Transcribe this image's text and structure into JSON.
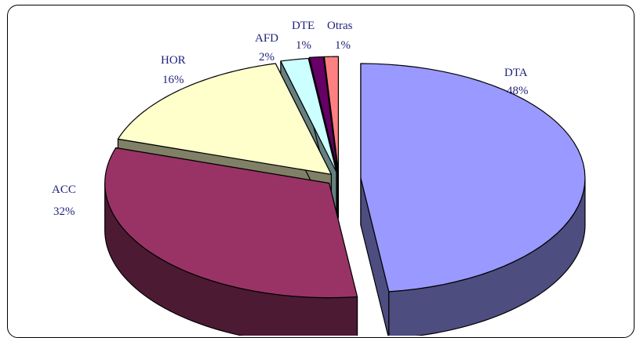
{
  "chart_data": {
    "type": "pie",
    "style": "3d-exploded",
    "title": "",
    "categories": [
      "DTA",
      "ACC",
      "HOR",
      "AFD",
      "DTE",
      "Otras"
    ],
    "values": [
      48,
      32,
      16,
      2,
      1,
      1
    ],
    "labels": [
      "48%",
      "32%",
      "16%",
      "2%",
      "1%",
      "1%"
    ],
    "colors": [
      "#9999ff",
      "#993366",
      "#ffffcc",
      "#ccffff",
      "#660066",
      "#ff8080"
    ],
    "side_colors": [
      "#4d4d80",
      "#4d1a33",
      "#808066",
      "#668080",
      "#330033",
      "#804040"
    ],
    "legend": "none (labels beside slices)"
  },
  "slice_labels": {
    "dta_name": "DTA",
    "dta_pct": "48%",
    "acc_name": "ACC",
    "acc_pct": "32%",
    "hor_name": "HOR",
    "hor_pct": "16%",
    "afd_name": "AFD",
    "afd_pct": "2%",
    "dte_name": "DTE",
    "dte_pct": "1%",
    "otras_name": "Otras",
    "otras_pct": "1%"
  }
}
